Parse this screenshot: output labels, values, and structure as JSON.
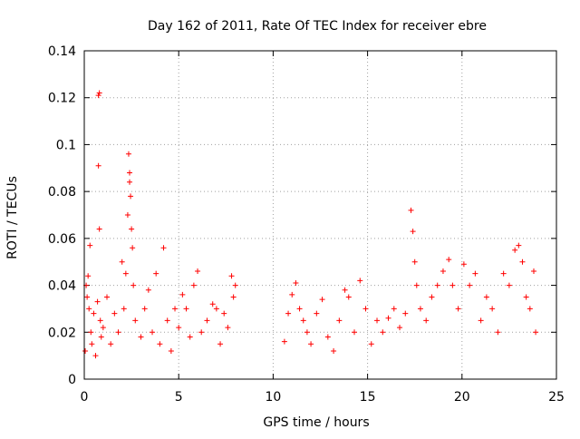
{
  "chart_data": {
    "type": "scatter",
    "title": "Day 162 of 2011, Rate Of TEC Index for receiver ebre",
    "xlabel": "GPS time / hours",
    "ylabel": "ROTI / TECUs",
    "xlim": [
      0,
      25
    ],
    "ylim": [
      0,
      0.14
    ],
    "grid": true,
    "marker": "plus",
    "color": "#ff0000",
    "x_ticks": [
      0,
      5,
      10,
      15,
      20,
      25
    ],
    "x_tick_labels": [
      "0",
      "5",
      "10",
      "15",
      "20",
      "25"
    ],
    "y_ticks": [
      0,
      0.02,
      0.04,
      0.06,
      0.08,
      0.1,
      0.12,
      0.14
    ],
    "y_tick_labels": [
      "0",
      "0.02",
      "0.04",
      "0.06",
      "0.08",
      "0.1",
      "0.12",
      "0.14"
    ],
    "series": [
      {
        "name": "ROTI",
        "points": [
          [
            0.05,
            0.012
          ],
          [
            0.1,
            0.04
          ],
          [
            0.15,
            0.035
          ],
          [
            0.2,
            0.044
          ],
          [
            0.25,
            0.03
          ],
          [
            0.3,
            0.057
          ],
          [
            0.35,
            0.02
          ],
          [
            0.4,
            0.015
          ],
          [
            0.5,
            0.028
          ],
          [
            0.6,
            0.01
          ],
          [
            0.7,
            0.033
          ],
          [
            0.75,
            0.121
          ],
          [
            0.8,
            0.122
          ],
          [
            0.8,
            0.064
          ],
          [
            0.75,
            0.091
          ],
          [
            0.85,
            0.025
          ],
          [
            0.9,
            0.018
          ],
          [
            1.0,
            0.022
          ],
          [
            1.2,
            0.035
          ],
          [
            1.4,
            0.015
          ],
          [
            1.6,
            0.028
          ],
          [
            1.8,
            0.02
          ],
          [
            2.0,
            0.05
          ],
          [
            2.1,
            0.03
          ],
          [
            2.2,
            0.045
          ],
          [
            2.3,
            0.07
          ],
          [
            2.35,
            0.096
          ],
          [
            2.4,
            0.088
          ],
          [
            2.4,
            0.084
          ],
          [
            2.45,
            0.078
          ],
          [
            2.5,
            0.064
          ],
          [
            2.55,
            0.056
          ],
          [
            2.6,
            0.04
          ],
          [
            2.7,
            0.025
          ],
          [
            3.0,
            0.018
          ],
          [
            3.2,
            0.03
          ],
          [
            3.4,
            0.038
          ],
          [
            3.6,
            0.02
          ],
          [
            3.8,
            0.045
          ],
          [
            4.0,
            0.015
          ],
          [
            4.2,
            0.056
          ],
          [
            4.4,
            0.025
          ],
          [
            4.6,
            0.012
          ],
          [
            4.8,
            0.03
          ],
          [
            5.0,
            0.022
          ],
          [
            5.2,
            0.036
          ],
          [
            5.4,
            0.03
          ],
          [
            5.6,
            0.018
          ],
          [
            5.8,
            0.04
          ],
          [
            6.0,
            0.046
          ],
          [
            6.2,
            0.02
          ],
          [
            6.5,
            0.025
          ],
          [
            6.8,
            0.032
          ],
          [
            7.0,
            0.03
          ],
          [
            7.2,
            0.015
          ],
          [
            7.4,
            0.028
          ],
          [
            7.6,
            0.022
          ],
          [
            7.8,
            0.044
          ],
          [
            7.9,
            0.035
          ],
          [
            8.0,
            0.04
          ],
          [
            10.6,
            0.016
          ],
          [
            10.8,
            0.028
          ],
          [
            11.0,
            0.036
          ],
          [
            11.2,
            0.041
          ],
          [
            11.4,
            0.03
          ],
          [
            11.6,
            0.025
          ],
          [
            11.8,
            0.02
          ],
          [
            12.0,
            0.015
          ],
          [
            12.3,
            0.028
          ],
          [
            12.6,
            0.034
          ],
          [
            12.9,
            0.018
          ],
          [
            13.2,
            0.012
          ],
          [
            13.5,
            0.025
          ],
          [
            13.8,
            0.038
          ],
          [
            14.0,
            0.035
          ],
          [
            14.3,
            0.02
          ],
          [
            14.6,
            0.042
          ],
          [
            14.9,
            0.03
          ],
          [
            15.2,
            0.015
          ],
          [
            15.5,
            0.025
          ],
          [
            15.8,
            0.02
          ],
          [
            16.1,
            0.026
          ],
          [
            16.4,
            0.03
          ],
          [
            16.7,
            0.022
          ],
          [
            17.0,
            0.028
          ],
          [
            17.3,
            0.072
          ],
          [
            17.4,
            0.063
          ],
          [
            17.5,
            0.05
          ],
          [
            17.6,
            0.04
          ],
          [
            17.8,
            0.03
          ],
          [
            18.1,
            0.025
          ],
          [
            18.4,
            0.035
          ],
          [
            18.7,
            0.04
          ],
          [
            19.0,
            0.046
          ],
          [
            19.3,
            0.051
          ],
          [
            19.5,
            0.04
          ],
          [
            19.8,
            0.03
          ],
          [
            20.1,
            0.049
          ],
          [
            20.4,
            0.04
          ],
          [
            20.7,
            0.045
          ],
          [
            21.0,
            0.025
          ],
          [
            21.3,
            0.035
          ],
          [
            21.6,
            0.03
          ],
          [
            21.9,
            0.02
          ],
          [
            22.2,
            0.045
          ],
          [
            22.5,
            0.04
          ],
          [
            22.8,
            0.055
          ],
          [
            23.0,
            0.057
          ],
          [
            23.2,
            0.05
          ],
          [
            23.4,
            0.035
          ],
          [
            23.6,
            0.03
          ],
          [
            23.8,
            0.046
          ],
          [
            23.9,
            0.02
          ]
        ]
      }
    ]
  }
}
